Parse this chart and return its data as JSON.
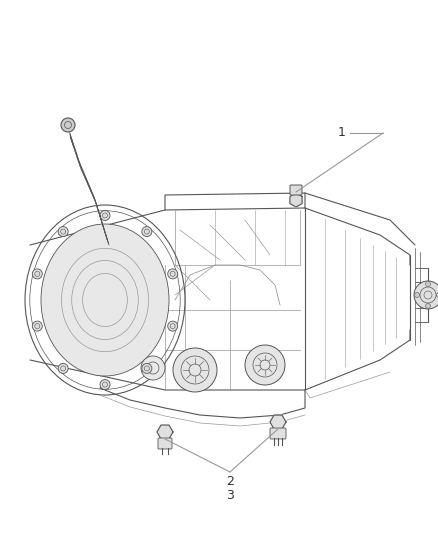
{
  "background_color": "#ffffff",
  "figure_width": 4.38,
  "figure_height": 5.33,
  "dpi": 100,
  "label_1": "1",
  "label_2": "2",
  "label_3": "3",
  "line_color": "#999999",
  "label_color": "#333333",
  "font_size": 9,
  "sensor_color": "#cccccc",
  "dark_line": "#555555",
  "light_line": "#aaaaaa"
}
